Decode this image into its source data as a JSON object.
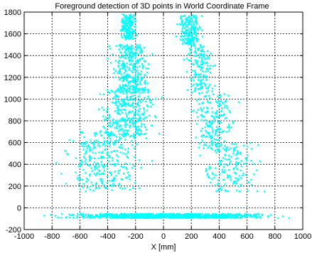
{
  "chart_data": {
    "type": "scatter",
    "title": "Foreground detection of 3D points in World Coordinate Frame",
    "xlabel": "X [mm]",
    "ylabel": "",
    "xlim": [
      -1000,
      1000
    ],
    "ylim": [
      -200,
      1800
    ],
    "grid": true,
    "marker_color": "#00FFFF",
    "x_ticks": [
      -1000,
      -800,
      -600,
      -400,
      -200,
      0,
      200,
      400,
      600,
      800,
      1000
    ],
    "y_ticks": [
      -200,
      0,
      200,
      400,
      600,
      800,
      1000,
      1200,
      1400,
      1600,
      1800
    ],
    "x_tick_labels": [
      "-1000",
      "-800",
      "-600",
      "-400",
      "-200",
      "0",
      "200",
      "400",
      "600",
      "800",
      "1000"
    ],
    "y_tick_labels": [
      "-200",
      "0",
      "200",
      "400",
      "600",
      "800",
      "1000",
      "1200",
      "1400",
      "1600",
      "1800"
    ],
    "series": [
      {
        "point_clusters": [
          {
            "x_range": [
              -960,
              980
            ],
            "y_range": [
              -95,
              -55
            ],
            "count": 900
          },
          {
            "x_range": [
              -320,
              -180
            ],
            "y_range": [
              1550,
              1780
            ],
            "count": 180
          },
          {
            "x_range": [
              -420,
              -40
            ],
            "y_range": [
              1050,
              1500
            ],
            "count": 320
          },
          {
            "x_range": [
              -520,
              10
            ],
            "y_range": [
              650,
              1100
            ],
            "count": 320
          },
          {
            "x_range": [
              -800,
              -60
            ],
            "y_range": [
              150,
              700
            ],
            "count": 300
          },
          {
            "x_range": [
              80,
              300
            ],
            "y_range": [
              1500,
              1770
            ],
            "count": 180
          },
          {
            "x_range": [
              130,
              400
            ],
            "y_range": [
              1050,
              1500
            ],
            "count": 160
          },
          {
            "x_range": [
              150,
              580
            ],
            "y_range": [
              550,
              1050
            ],
            "count": 180
          },
          {
            "x_range": [
              200,
              760
            ],
            "y_range": [
              150,
              600
            ],
            "count": 170
          }
        ]
      }
    ]
  }
}
